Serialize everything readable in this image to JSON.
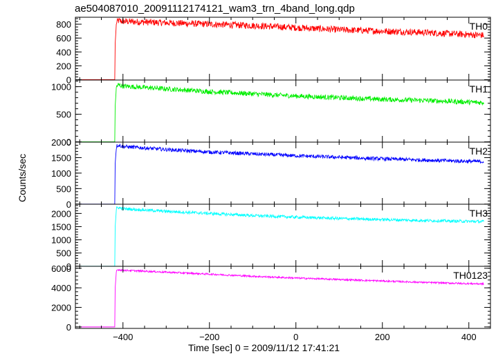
{
  "chart_data": {
    "type": "line",
    "title": "ae504087010_20091112174121_wam3_trn_4band_long.qdp",
    "xlabel": "Time [sec] 0 = 2009/11/12 17:41:21",
    "ylabel": "Counts/sec",
    "xlim": [
      -510,
      450
    ],
    "x_ticks": [
      -400,
      -200,
      0,
      200,
      400
    ],
    "trigger_time": -418,
    "x_end": 435,
    "panels": [
      {
        "name": "TH0",
        "color": "#ff0000",
        "ylim": [
          -5,
          900
        ],
        "y_ticks": [
          0,
          200,
          400,
          600,
          800
        ],
        "x": [
          -500,
          -420,
          -418,
          -415,
          -410,
          -400,
          -300,
          -200,
          -100,
          0,
          100,
          200,
          300,
          400,
          435
        ],
        "y": [
          0,
          0,
          520,
          830,
          850,
          840,
          820,
          800,
          780,
          750,
          720,
          700,
          680,
          650,
          640
        ],
        "noise": 60
      },
      {
        "name": "TH1",
        "color": "#00ee00",
        "ylim": [
          -5,
          1120
        ],
        "y_ticks": [
          0,
          500,
          1000
        ],
        "x": [
          -500,
          -420,
          -418,
          -415,
          -410,
          -400,
          -300,
          -200,
          -100,
          0,
          100,
          200,
          300,
          400,
          435
        ],
        "y": [
          0,
          0,
          650,
          1010,
          1030,
          1010,
          960,
          910,
          870,
          830,
          800,
          770,
          750,
          720,
          710
        ],
        "noise": 55
      },
      {
        "name": "TH2",
        "color": "#0000ff",
        "ylim": [
          -5,
          2000
        ],
        "y_ticks": [
          0,
          500,
          1000,
          1500,
          2000
        ],
        "x": [
          -500,
          -420,
          -418,
          -415,
          -410,
          -400,
          -300,
          -200,
          -100,
          0,
          100,
          200,
          300,
          400,
          435
        ],
        "y": [
          0,
          0,
          1300,
          1880,
          1900,
          1860,
          1760,
          1680,
          1620,
          1560,
          1510,
          1460,
          1420,
          1380,
          1370
        ],
        "noise": 75
      },
      {
        "name": "TH3",
        "color": "#00ffff",
        "ylim": [
          -5,
          2350
        ],
        "y_ticks": [
          0,
          500,
          1000,
          1500,
          2000
        ],
        "x": [
          -500,
          -420,
          -418,
          -415,
          -410,
          -400,
          -300,
          -200,
          -100,
          0,
          100,
          200,
          300,
          400,
          435
        ],
        "y": [
          0,
          0,
          1500,
          2200,
          2220,
          2180,
          2080,
          2000,
          1920,
          1860,
          1810,
          1770,
          1730,
          1700,
          1690
        ],
        "noise": 70
      },
      {
        "name": "TH0123",
        "color": "#ff00ff",
        "ylim": [
          -150,
          6200
        ],
        "y_ticks": [
          0,
          2000,
          4000,
          6000
        ],
        "x": [
          -500,
          -420,
          -418,
          -415,
          -410,
          -400,
          -300,
          -200,
          -100,
          0,
          100,
          200,
          300,
          400,
          435
        ],
        "y": [
          0,
          0,
          4000,
          5800,
          5850,
          5800,
          5600,
          5400,
          5180,
          5000,
          4850,
          4700,
          4550,
          4430,
          4400
        ],
        "noise": 110
      }
    ]
  }
}
